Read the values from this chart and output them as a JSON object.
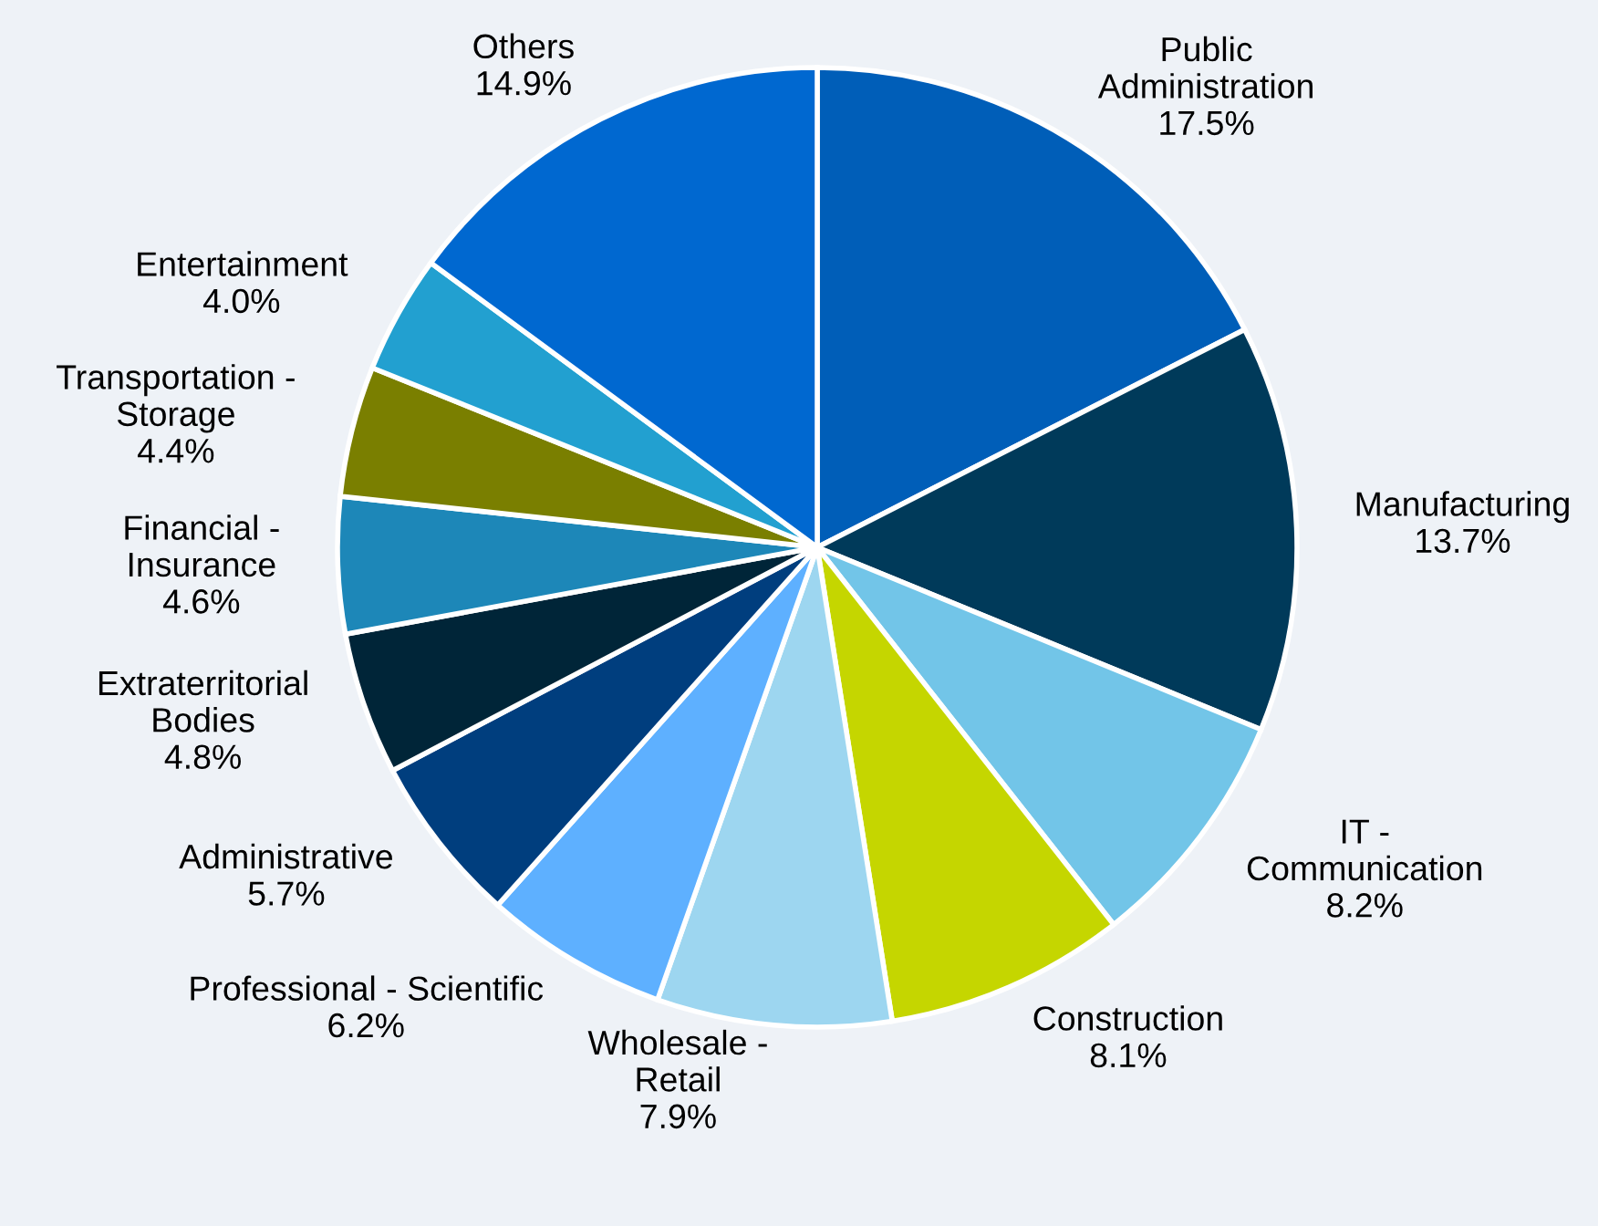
{
  "chart_data": {
    "type": "pie",
    "categories": [
      "Public\nAdministration",
      "Manufacturing",
      "IT -\nCommunication",
      "Construction",
      "Wholesale -\nRetail",
      "Professional - Scientific",
      "Administrative",
      "Extraterritorial\nBodies",
      "Financial -\nInsurance",
      "Transportation -\nStorage",
      "Entertainment",
      "Others"
    ],
    "values": [
      17.5,
      13.7,
      8.2,
      8.1,
      7.9,
      6.2,
      5.7,
      4.8,
      4.6,
      4.4,
      4.0,
      14.9
    ],
    "value_labels": [
      "17.5%",
      "13.7%",
      "8.2%",
      "8.1%",
      "7.9%",
      "6.2%",
      "5.7%",
      "4.8%",
      "4.6%",
      "4.4%",
      "4.0%",
      "14.9%"
    ],
    "colors": [
      "#005eb8",
      "#003a5a",
      "#72c5e8",
      "#c5d600",
      "#9dd6f0",
      "#5eb0ff",
      "#003e7e",
      "#002538",
      "#1d87b8",
      "#7a7f00",
      "#22a0d0",
      "#0068d0"
    ],
    "legend": false
  }
}
